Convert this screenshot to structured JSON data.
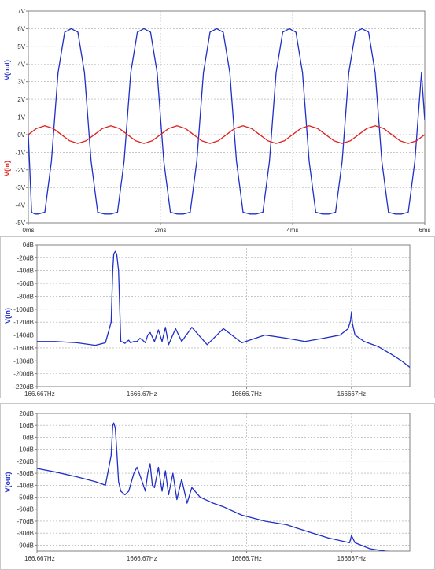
{
  "chart_data": [
    {
      "type": "line",
      "title": "",
      "xlabel": "",
      "ylabel": "V(out)",
      "ylabel_secondary": "V(in)",
      "x_unit": "ms",
      "xlim": [
        0,
        6
      ],
      "ylim": [
        -5,
        7
      ],
      "x_ticks": [
        "0ms",
        "2ms",
        "4ms",
        "6ms"
      ],
      "x_tick_values": [
        0,
        2,
        4,
        6
      ],
      "y_ticks": [
        "7V",
        "6V",
        "5V",
        "4V",
        "3V",
        "2V",
        "1V",
        "0V",
        "-1V",
        "-2V",
        "-3V",
        "-4V",
        "-5V"
      ],
      "y_tick_values": [
        7,
        6,
        5,
        4,
        3,
        2,
        1,
        0,
        -1,
        -2,
        -3,
        -4,
        -5
      ],
      "grid": true,
      "series": [
        {
          "name": "V(out)",
          "color": "#1f2fc8",
          "x": [
            0,
            0.05,
            0.1,
            0.15,
            0.25,
            0.35,
            0.45,
            0.55,
            0.65,
            0.75,
            0.85,
            0.95,
            1.05,
            1.15,
            1.25,
            1.35,
            1.45,
            1.55,
            1.65,
            1.75,
            1.85,
            1.95,
            2.05,
            2.15,
            2.25,
            2.35,
            2.45,
            2.55,
            2.65,
            2.75,
            2.85,
            2.95,
            3.05,
            3.15,
            3.25,
            3.35,
            3.45,
            3.55,
            3.65,
            3.75,
            3.85,
            3.95,
            4.05,
            4.15,
            4.25,
            4.35,
            4.45,
            4.55,
            4.65,
            4.75,
            4.85,
            4.95,
            5.05,
            5.15,
            5.25,
            5.35,
            5.45,
            5.55,
            5.65,
            5.75,
            5.85,
            5.95,
            6.0
          ],
          "y": [
            0.0,
            -4.4,
            -4.5,
            -4.5,
            -4.4,
            -1.5,
            3.5,
            5.8,
            6.0,
            5.8,
            3.5,
            -1.5,
            -4.4,
            -4.5,
            -4.5,
            -4.4,
            -1.5,
            3.5,
            5.8,
            6.0,
            5.8,
            3.5,
            -1.5,
            -4.4,
            -4.5,
            -4.5,
            -4.4,
            -1.5,
            3.5,
            5.8,
            6.0,
            5.8,
            3.5,
            -1.5,
            -4.4,
            -4.5,
            -4.5,
            -4.4,
            -1.5,
            3.5,
            5.8,
            6.0,
            5.8,
            3.5,
            -1.5,
            -4.4,
            -4.5,
            -4.5,
            -4.4,
            -1.5,
            3.5,
            5.8,
            6.0,
            5.8,
            3.5,
            -1.5,
            -4.4,
            -4.5,
            -4.5,
            -4.4,
            -1.5,
            3.5,
            0.8
          ]
        },
        {
          "name": "V(in)",
          "color": "#e02020",
          "amplitude": 0.5,
          "period_ms": 1.0,
          "x": [
            0,
            0.125,
            0.25,
            0.375,
            0.5,
            0.625,
            0.75,
            0.875,
            1.0,
            1.125,
            1.25,
            1.375,
            1.5,
            1.625,
            1.75,
            1.875,
            2.0,
            2.125,
            2.25,
            2.375,
            2.5,
            2.625,
            2.75,
            2.875,
            3.0,
            3.125,
            3.25,
            3.375,
            3.5,
            3.625,
            3.75,
            3.875,
            4.0,
            4.125,
            4.25,
            4.375,
            4.5,
            4.625,
            4.75,
            4.875,
            5.0,
            5.125,
            5.25,
            5.375,
            5.5,
            5.625,
            5.75,
            5.875,
            6.0
          ],
          "y": [
            0.0,
            0.35,
            0.5,
            0.35,
            0.0,
            -0.35,
            -0.5,
            -0.35,
            0.0,
            0.35,
            0.5,
            0.35,
            0.0,
            -0.35,
            -0.5,
            -0.35,
            0.0,
            0.35,
            0.5,
            0.35,
            0.0,
            -0.35,
            -0.5,
            -0.35,
            0.0,
            0.35,
            0.5,
            0.35,
            0.0,
            -0.35,
            -0.5,
            -0.35,
            0.0,
            0.35,
            0.5,
            0.35,
            0.0,
            -0.35,
            -0.5,
            -0.35,
            0.0,
            0.35,
            0.5,
            0.35,
            0.0,
            -0.35,
            -0.5,
            -0.35,
            0.0
          ]
        }
      ]
    },
    {
      "type": "line",
      "title": "",
      "xlabel": "",
      "ylabel": "V(in)",
      "x_scale": "log",
      "xlim": [
        166.667,
        600000
      ],
      "ylim": [
        -220,
        0
      ],
      "x_ticks": [
        "166.667Hz",
        "1666.67Hz",
        "16666.7Hz",
        "166667Hz"
      ],
      "x_tick_values": [
        166.667,
        1666.67,
        16666.7,
        166667
      ],
      "y_ticks": [
        "0dB",
        "-20dB",
        "-40dB",
        "-60dB",
        "-80dB",
        "-100dB",
        "-120dB",
        "-140dB",
        "-160dB",
        "-180dB",
        "-200dB",
        "-220dB"
      ],
      "y_tick_values": [
        0,
        -20,
        -40,
        -60,
        -80,
        -100,
        -120,
        -140,
        -160,
        -180,
        -200,
        -220
      ],
      "grid": true,
      "series": [
        {
          "name": "V(in)",
          "color": "#1f2fc8",
          "x": [
            166.667,
            250,
            400,
            600,
            750,
            850,
            880,
            900,
            930,
            960,
            1000,
            1050,
            1100,
            1150,
            1200,
            1250,
            1300,
            1400,
            1500,
            1600,
            1700,
            1800,
            1900,
            2000,
            2200,
            2400,
            2600,
            2800,
            3000,
            3500,
            4000,
            5000,
            7000,
            10000,
            15000,
            25000,
            40000,
            60000,
            90000,
            130000,
            155000,
            163000,
            166667,
            170000,
            180000,
            220000,
            300000,
            400000,
            500000,
            600000
          ],
          "y": [
            -150,
            -150,
            -152,
            -156,
            -152,
            -120,
            -40,
            -14,
            -10,
            -14,
            -40,
            -150,
            -151,
            -153,
            -150,
            -148,
            -152,
            -150,
            -150,
            -145,
            -148,
            -152,
            -140,
            -136,
            -150,
            -132,
            -150,
            -128,
            -155,
            -130,
            -150,
            -128,
            -155,
            -130,
            -152,
            -140,
            -145,
            -150,
            -145,
            -140,
            -130,
            -118,
            -104,
            -122,
            -140,
            -150,
            -158,
            -170,
            -180,
            -190
          ]
        }
      ]
    },
    {
      "type": "line",
      "title": "",
      "xlabel": "",
      "ylabel": "V(out)",
      "x_scale": "log",
      "xlim": [
        166.667,
        600000
      ],
      "ylim": [
        -95,
        20
      ],
      "x_ticks": [
        "166.667Hz",
        "1666.67Hz",
        "16666.7Hz",
        "166667Hz"
      ],
      "x_tick_values": [
        166.667,
        1666.67,
        16666.7,
        166667
      ],
      "y_ticks": [
        "20dB",
        "10dB",
        "0dB",
        "-10dB",
        "-20dB",
        "-30dB",
        "-40dB",
        "-50dB",
        "-60dB",
        "-70dB",
        "-80dB",
        "-90dB"
      ],
      "y_tick_values": [
        20,
        10,
        0,
        -10,
        -20,
        -30,
        -40,
        -50,
        -60,
        -70,
        -80,
        -90
      ],
      "grid": true,
      "series": [
        {
          "name": "V(out)",
          "color": "#1f2fc8",
          "x": [
            166.667,
            250,
            400,
            600,
            750,
            850,
            880,
            900,
            930,
            960,
            1000,
            1050,
            1150,
            1250,
            1400,
            1500,
            1650,
            1800,
            1900,
            2000,
            2100,
            2200,
            2400,
            2600,
            2800,
            3000,
            3300,
            3600,
            4000,
            4500,
            5000,
            6000,
            8000,
            10000,
            15000,
            25000,
            40000,
            60000,
            100000,
            160000,
            166667,
            180000,
            250000,
            350000,
            450000,
            600000
          ],
          "y": [
            -26,
            -29,
            -33,
            -37,
            -40,
            -15,
            10,
            12,
            8,
            -10,
            -37,
            -45,
            -48,
            -45,
            -30,
            -25,
            -35,
            -45,
            -30,
            -22,
            -40,
            -42,
            -25,
            -45,
            -28,
            -48,
            -30,
            -52,
            -35,
            -55,
            -42,
            -50,
            -55,
            -58,
            -65,
            -70,
            -73,
            -78,
            -84,
            -88,
            -82,
            -88,
            -93,
            -95,
            -96,
            -96
          ]
        }
      ]
    }
  ]
}
